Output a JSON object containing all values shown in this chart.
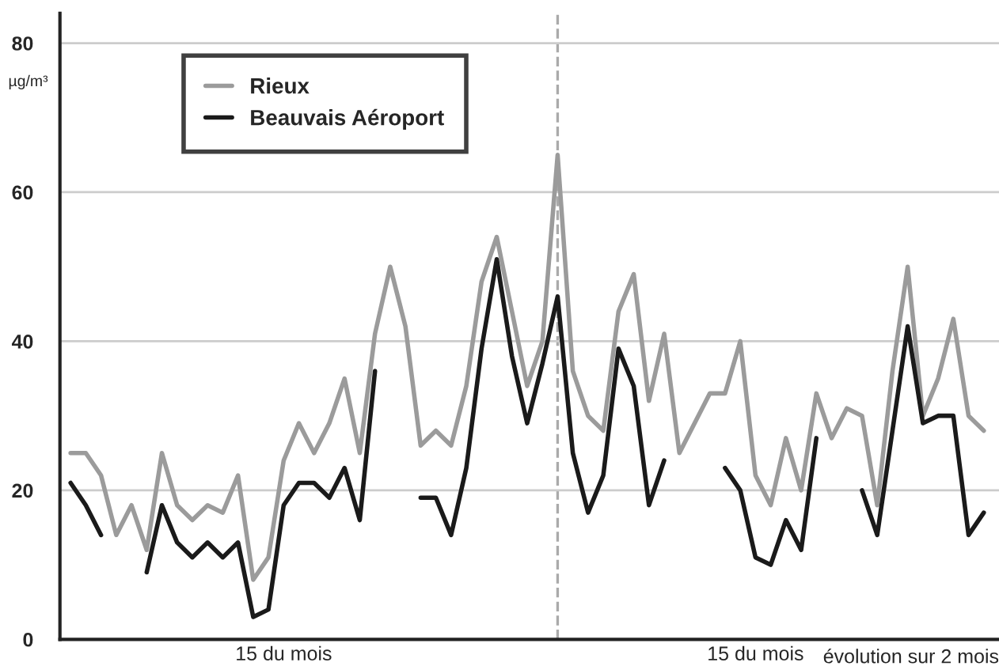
{
  "chart_data": {
    "type": "line",
    "ylabel": "µg/m³",
    "legend": "top left",
    "grid": "y",
    "marker": "none",
    "line_style": "solid",
    "categories": [
      null,
      null,
      null,
      null,
      null,
      null,
      null,
      null,
      null,
      null,
      null,
      null,
      null,
      null,
      "15 du mois",
      null,
      null,
      null,
      null,
      null,
      null,
      null,
      null,
      null,
      null,
      null,
      null,
      null,
      null,
      null,
      null,
      null,
      null,
      null,
      null,
      null,
      null,
      null,
      null,
      null,
      null,
      null,
      null,
      null,
      null,
      "15 du mois",
      null,
      null,
      null,
      null,
      null,
      null,
      null,
      null,
      null,
      null,
      null,
      null,
      null,
      null,
      null
    ],
    "ylim": [
      0,
      84
    ],
    "yticks": [
      0,
      20,
      40,
      60,
      80
    ],
    "annotations": [
      "évolution sur 2 mois"
    ],
    "series": [
      {
        "name": "Rieux",
        "color": "#9b9b9b",
        "values": [
          25,
          25,
          22,
          14,
          18,
          12,
          25,
          18,
          16,
          18,
          17,
          22,
          8,
          11,
          24,
          29,
          25,
          29,
          35,
          25,
          41,
          50,
          42,
          26,
          28,
          26,
          34,
          48,
          54,
          44,
          34,
          40,
          65,
          36,
          30,
          28,
          44,
          49,
          32,
          41,
          25,
          29,
          33,
          33,
          40,
          22,
          18,
          27,
          20,
          33,
          27,
          31,
          30,
          18,
          36,
          50,
          30,
          35,
          43,
          30,
          28
        ]
      },
      {
        "name": "Beauvais Aéroport",
        "color": "#1a1a1a",
        "values": [
          21,
          18,
          14,
          null,
          null,
          9,
          18,
          13,
          11,
          13,
          11,
          13,
          3,
          4,
          18,
          21,
          21,
          19,
          23,
          16,
          36,
          null,
          null,
          19,
          19,
          14,
          23,
          39,
          51,
          38,
          29,
          37,
          46,
          25,
          17,
          22,
          39,
          34,
          18,
          24,
          null,
          null,
          null,
          23,
          20,
          11,
          10,
          16,
          12,
          27,
          null,
          null,
          20,
          14,
          28,
          42,
          29,
          30,
          30,
          14,
          17
        ]
      }
    ]
  }
}
